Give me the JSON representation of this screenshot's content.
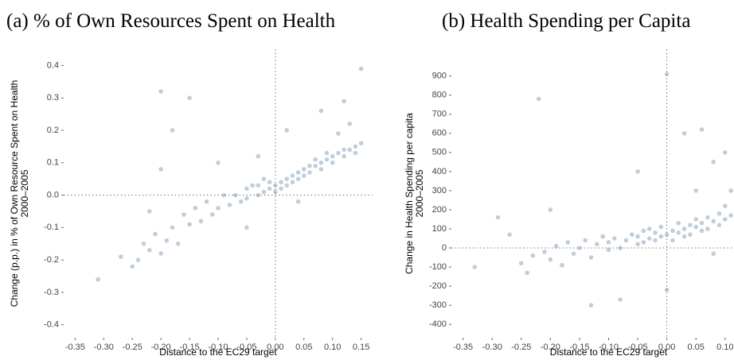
{
  "chart_data": [
    {
      "type": "scatter",
      "title": "(a) % of Own Resources Spent on Health",
      "xlabel": "Distance to the EC29 target",
      "ylabel": [
        "Change (p.p.) in % of Own Resource Spent on Health",
        "2000–2005"
      ],
      "color": "#2e5d87",
      "opacity": 0.3,
      "xlim": [
        -0.37,
        0.17
      ],
      "ylim": [
        -0.44,
        0.45
      ],
      "xticks": [
        -0.35,
        {
          "value": -0.3,
          "label": "-0.30"
        },
        -0.25,
        {
          "value": -0.2,
          "label": "-0.20"
        },
        -0.15,
        {
          "value": -0.1,
          "label": "-0.10"
        },
        -0.05,
        {
          "value": 0,
          "label": "0.00"
        },
        0.05,
        {
          "value": 0.1,
          "label": "0.10"
        },
        0.15
      ],
      "yticks": [
        0.4,
        0.3,
        0.2,
        0.1,
        {
          "value": 0,
          "label": "0.0"
        },
        -0.1,
        -0.2,
        -0.3,
        -0.4
      ],
      "vline": 0,
      "hline": 0,
      "x": [
        -0.31,
        -0.27,
        -0.25,
        -0.24,
        -0.23,
        -0.22,
        -0.21,
        -0.2,
        -0.2,
        -0.19,
        -0.18,
        -0.17,
        -0.16,
        -0.15,
        -0.14,
        -0.13,
        -0.12,
        -0.11,
        -0.1,
        -0.09,
        -0.08,
        -0.07,
        -0.06,
        -0.05,
        -0.05,
        -0.04,
        -0.03,
        -0.03,
        -0.02,
        -0.02,
        -0.01,
        -0.01,
        0,
        0,
        0.01,
        0.01,
        0.02,
        0.02,
        0.03,
        0.03,
        0.04,
        0.04,
        0.05,
        0.05,
        0.06,
        0.06,
        0.07,
        0.07,
        0.08,
        0.08,
        0.09,
        0.09,
        0.1,
        0.1,
        0.11,
        0.11,
        0.12,
        0.12,
        0.13,
        0.13,
        0.14,
        0.14,
        0.15,
        0.15,
        -0.2,
        -0.15,
        -0.03,
        0.02,
        0.08,
        0.12,
        -0.1,
        -0.05,
        0.04,
        -0.22,
        -0.18
      ],
      "values": [
        -0.26,
        -0.19,
        -0.22,
        -0.2,
        -0.15,
        -0.17,
        -0.12,
        -0.18,
        0.32,
        -0.14,
        -0.1,
        -0.15,
        -0.06,
        -0.09,
        -0.04,
        -0.08,
        -0.02,
        -0.06,
        -0.04,
        0,
        -0.03,
        0,
        -0.02,
        0.02,
        -0.01,
        0.03,
        0,
        0.03,
        0.01,
        0.05,
        0.02,
        0.04,
        0.03,
        0.01,
        0.04,
        0.02,
        0.05,
        0.03,
        0.06,
        0.04,
        0.07,
        0.05,
        0.08,
        0.06,
        0.09,
        0.07,
        0.09,
        0.11,
        0.1,
        0.08,
        0.11,
        0.13,
        0.12,
        0.1,
        0.13,
        0.19,
        0.14,
        0.12,
        0.14,
        0.22,
        0.15,
        0.13,
        0.16,
        0.39,
        0.08,
        0.3,
        0.12,
        0.2,
        0.26,
        0.29,
        0.1,
        -0.1,
        -0.02,
        -0.05,
        0.2
      ]
    },
    {
      "type": "scatter",
      "title": "(b) Health Spending per Capita",
      "xlabel": "Distance to the EC29 target",
      "ylabel": [
        "Change in Health Spending per capita",
        "2000–2005"
      ],
      "color": "#2e5d87",
      "opacity": 0.3,
      "xlim": [
        -0.37,
        0.17
      ],
      "ylim": [
        -470,
        1040
      ],
      "xticks": [
        -0.35,
        {
          "value": -0.3,
          "label": "-0.30"
        },
        -0.25,
        {
          "value": -0.2,
          "label": "-0.20"
        },
        -0.15,
        {
          "value": -0.1,
          "label": "-0.10"
        },
        -0.05,
        {
          "value": 0,
          "label": "0.00"
        },
        0.05,
        {
          "value": 0.1,
          "label": "0.10"
        }
      ],
      "yticks": [
        900,
        800,
        700,
        600,
        500,
        400,
        300,
        200,
        100,
        0,
        -100,
        -200,
        -300,
        -400
      ],
      "vline": 0,
      "hline": 0,
      "x": [
        -0.33,
        -0.29,
        -0.27,
        -0.25,
        -0.24,
        -0.23,
        -0.22,
        -0.21,
        -0.2,
        -0.19,
        -0.18,
        -0.17,
        -0.16,
        -0.15,
        -0.14,
        -0.13,
        -0.12,
        -0.11,
        -0.1,
        -0.1,
        -0.09,
        -0.08,
        -0.07,
        -0.06,
        -0.05,
        -0.05,
        -0.04,
        -0.04,
        -0.03,
        -0.03,
        -0.02,
        -0.02,
        -0.01,
        -0.01,
        0,
        0,
        0.01,
        0.01,
        0.02,
        0.02,
        0.03,
        0.03,
        0.04,
        0.04,
        0.05,
        0.05,
        0.06,
        0.06,
        0.07,
        0.07,
        0.08,
        0.08,
        0.09,
        0.09,
        0.1,
        0.1,
        0.11,
        0.11,
        0.12,
        0.12,
        -0.05,
        0.03,
        0.06,
        0,
        -0.13,
        0.08,
        -0.2,
        0.1,
        -0.08,
        0.05
      ],
      "values": [
        -100,
        160,
        70,
        -80,
        -130,
        -40,
        780,
        -20,
        -60,
        10,
        -90,
        30,
        -30,
        0,
        40,
        -50,
        20,
        60,
        -10,
        30,
        50,
        0,
        40,
        70,
        20,
        60,
        90,
        30,
        50,
        100,
        40,
        80,
        60,
        110,
        70,
        -220,
        90,
        40,
        80,
        130,
        60,
        100,
        120,
        70,
        110,
        150,
        90,
        130,
        160,
        100,
        140,
        -30,
        120,
        180,
        150,
        220,
        170,
        300,
        190,
        250,
        400,
        600,
        620,
        910,
        -300,
        450,
        200,
        500,
        -270,
        300
      ]
    }
  ]
}
